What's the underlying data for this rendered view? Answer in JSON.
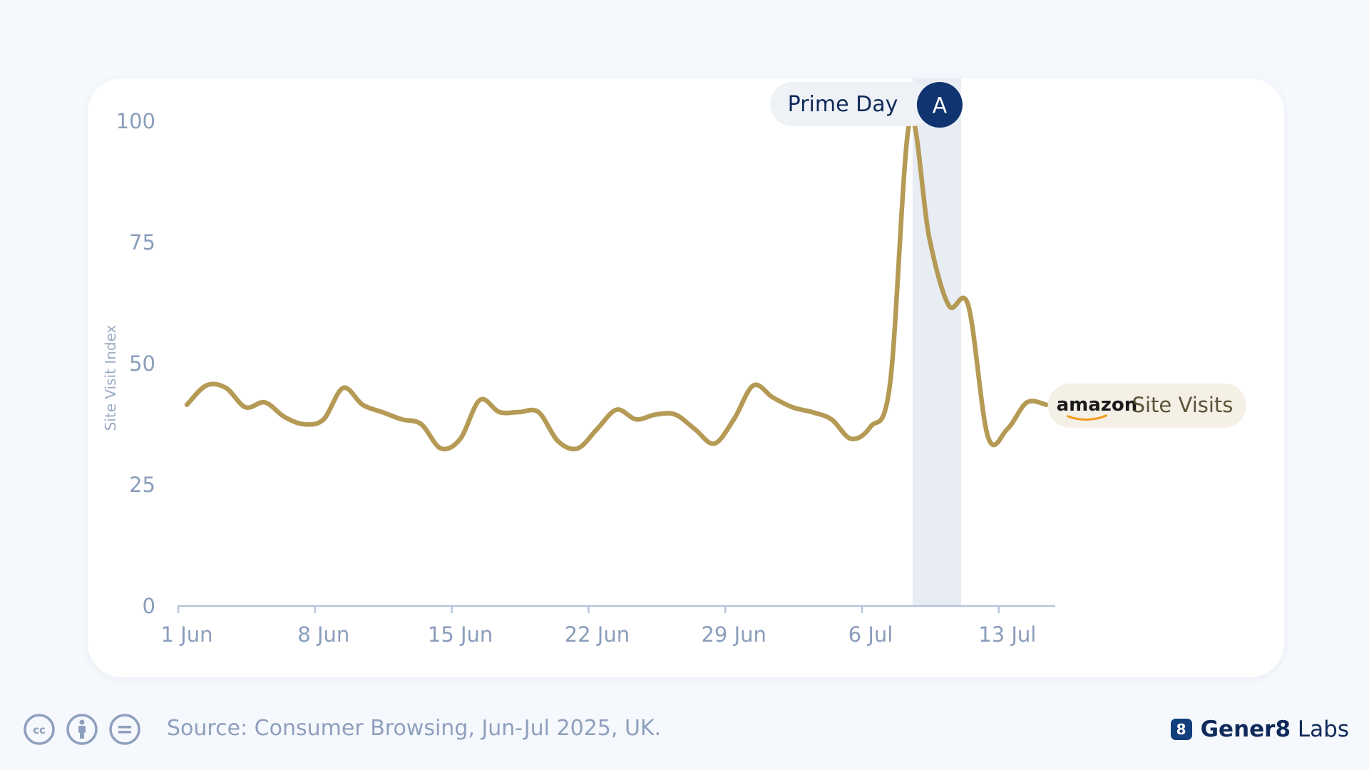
{
  "chart_data": {
    "type": "line",
    "title": "",
    "xlabel": "",
    "ylabel": "Site Visit Index",
    "ylim": [
      0,
      100
    ],
    "yticks": [
      0,
      25,
      50,
      75,
      100
    ],
    "xlim": [
      "2025-06-01",
      "2025-07-15"
    ],
    "xticks": [
      {
        "date": "2025-06-01",
        "label": "1 Jun"
      },
      {
        "date": "2025-06-08",
        "label": "8 Jun"
      },
      {
        "date": "2025-06-15",
        "label": "15 Jun"
      },
      {
        "date": "2025-06-22",
        "label": "22 Jun"
      },
      {
        "date": "2025-06-29",
        "label": "29 Jun"
      },
      {
        "date": "2025-07-06",
        "label": "6 Jul"
      },
      {
        "date": "2025-07-13",
        "label": "13 Jul"
      }
    ],
    "grid": false,
    "highlight": {
      "start": "2025-07-08",
      "end": "2025-07-11",
      "label": "Prime Day",
      "marker": "A",
      "color": "#e8edf4"
    },
    "series": [
      {
        "name": "Site Visits",
        "brand": "amazon",
        "color": "#b59a55",
        "x": [
          "2025-06-01",
          "2025-06-02",
          "2025-06-03",
          "2025-06-04",
          "2025-06-05",
          "2025-06-06",
          "2025-06-07",
          "2025-06-08",
          "2025-06-09",
          "2025-06-10",
          "2025-06-11",
          "2025-06-12",
          "2025-06-13",
          "2025-06-14",
          "2025-06-15",
          "2025-06-16",
          "2025-06-17",
          "2025-06-18",
          "2025-06-19",
          "2025-06-20",
          "2025-06-21",
          "2025-06-22",
          "2025-06-23",
          "2025-06-24",
          "2025-06-25",
          "2025-06-26",
          "2025-06-27",
          "2025-06-28",
          "2025-06-29",
          "2025-06-30",
          "2025-07-01",
          "2025-07-02",
          "2025-07-03",
          "2025-07-04",
          "2025-07-05",
          "2025-07-06",
          "2025-07-07",
          "2025-07-08",
          "2025-07-09",
          "2025-07-10",
          "2025-07-11",
          "2025-07-12",
          "2025-07-13",
          "2025-07-14",
          "2025-07-15"
        ],
        "y": [
          41.5,
          45.5,
          45.0,
          41.0,
          42.0,
          39.0,
          37.5,
          38.5,
          45.0,
          41.5,
          40.0,
          38.5,
          37.5,
          32.5,
          34.5,
          42.5,
          40.0,
          40.0,
          40.0,
          34.0,
          32.5,
          36.5,
          40.5,
          38.5,
          39.5,
          39.5,
          36.5,
          33.5,
          38.5,
          45.5,
          43.0,
          41.0,
          40.0,
          38.5,
          34.5,
          37.0,
          46.0,
          100.0,
          76.0,
          62.0,
          62.0,
          35.0,
          36.5,
          42.0,
          41.5
        ]
      }
    ]
  },
  "footer": {
    "source": "Source: Consumer Browsing, Jun-Jul 2025, UK.",
    "license_icons": [
      "cc-icon",
      "by-icon",
      "nd-icon"
    ],
    "brand_mark": "8",
    "brand_strong": "Gener8",
    "brand_light": "Labs"
  }
}
